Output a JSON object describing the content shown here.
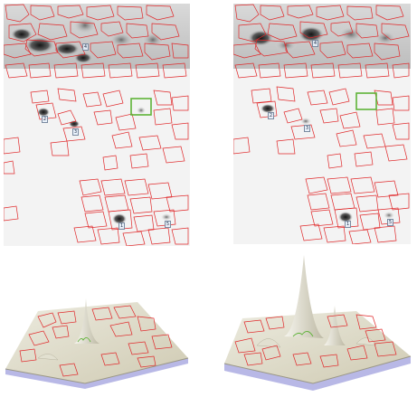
{
  "gel_left": {
    "spot_labels": [
      {
        "id": "l4",
        "text": "4"
      },
      {
        "id": "l2",
        "text": "2"
      },
      {
        "id": "l3",
        "text": "3"
      },
      {
        "id": "l1",
        "text": "1"
      },
      {
        "id": "l5",
        "text": "5"
      }
    ]
  },
  "gel_right": {
    "spot_labels": [
      {
        "id": "r4",
        "text": "4"
      },
      {
        "id": "r2",
        "text": "2"
      },
      {
        "id": "r3",
        "text": "3"
      },
      {
        "id": "r1",
        "text": "1"
      },
      {
        "id": "r5",
        "text": "5"
      }
    ]
  },
  "colors": {
    "gel_background": "#f3f3f3",
    "spot_outline": "#e0282a",
    "selection_box": "#5fb338",
    "surface": "#dedbc8",
    "surface_base": "#b8b8e6"
  }
}
